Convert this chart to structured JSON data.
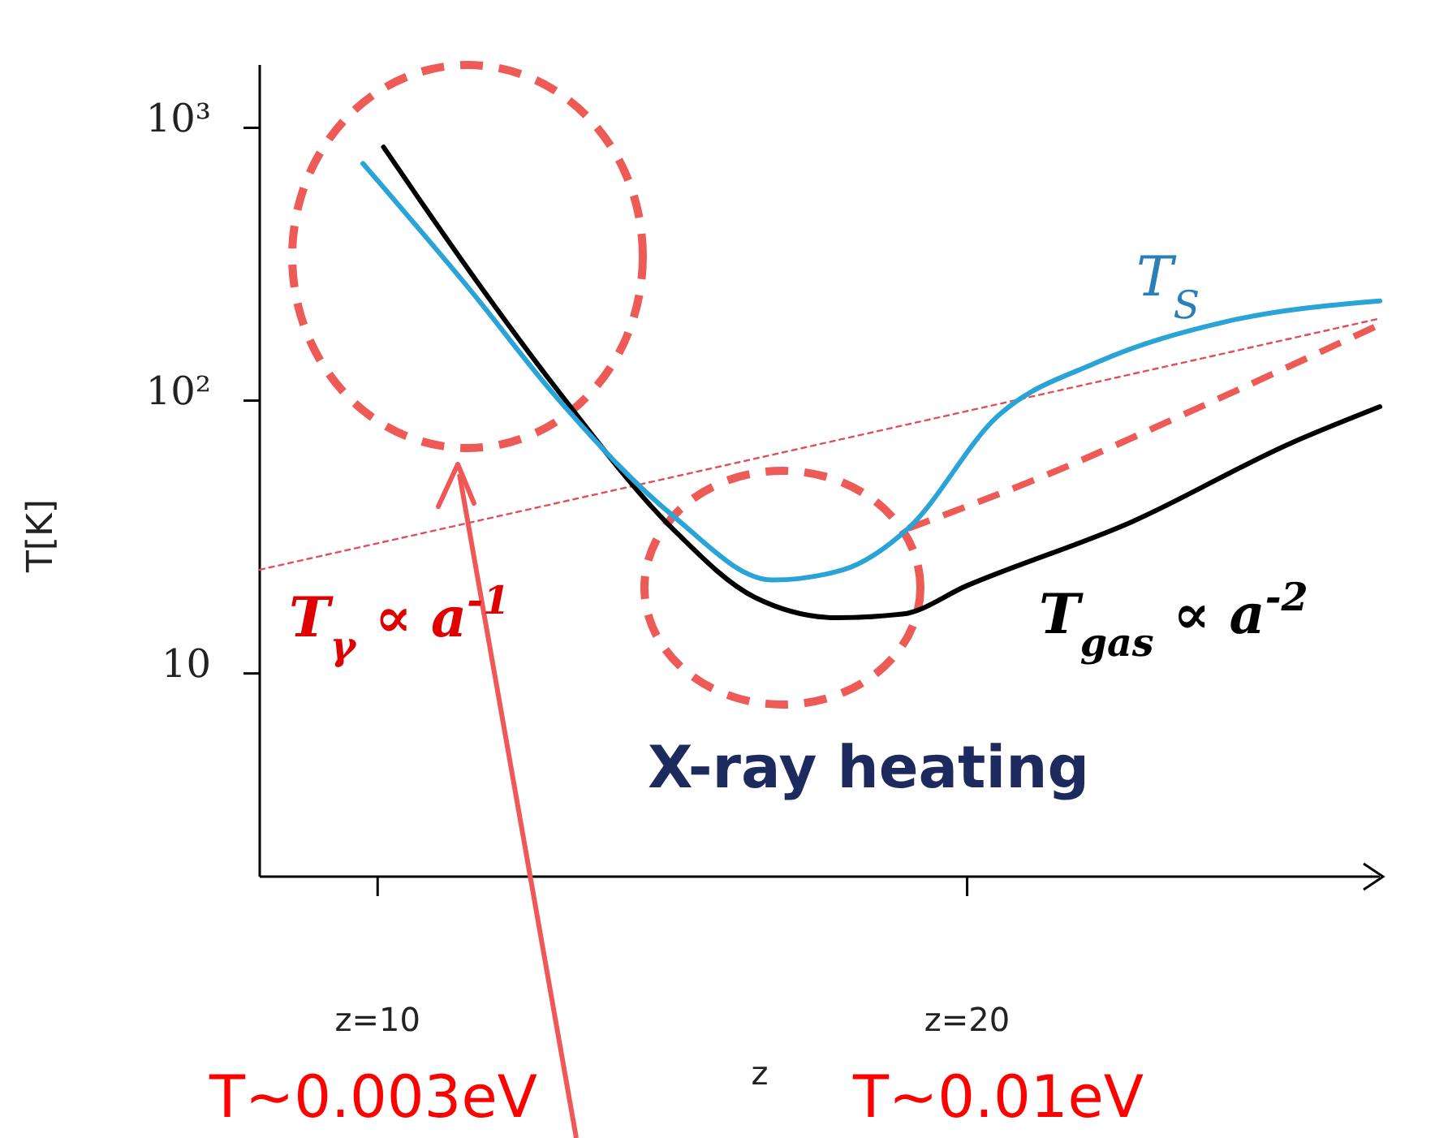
{
  "chart_data": {
    "type": "line",
    "xlabel": "z",
    "ylabel": "T[K]",
    "log": "y",
    "xlim": [
      8,
      27
    ],
    "ylim": [
      1.8,
      1700
    ],
    "xticks": [
      {
        "value": 10,
        "label": "z=10"
      },
      {
        "value": 20,
        "label": "z=20"
      }
    ],
    "yticks": [
      {
        "value": 10,
        "label": "10"
      },
      {
        "value": 100,
        "label": "10²"
      },
      {
        "value": 1000,
        "label": "10³"
      }
    ],
    "grid": false,
    "legend": false,
    "marker": "none",
    "series": [
      {
        "name": "T$_{γ}$ ∝ a$^{-1}$",
        "color": "#e0505a",
        "line_style": "dotted",
        "x": [
          8,
          27
        ],
        "values": [
          24,
          200
        ]
      },
      {
        "name": "T$_{gas}$ ∝ a$^{-2}$",
        "color": "#000000",
        "line_style": "solid",
        "x": [
          10.1,
          11.6,
          13,
          15,
          16.4,
          17.8,
          18.9,
          20,
          22.8,
          25.5,
          27
        ],
        "values": [
          850,
          290,
          113,
          34,
          19,
          16,
          16.5,
          21,
          36,
          70,
          95
        ]
      },
      {
        "color": "#ee5a55",
        "line_style": "dashed",
        "x": [
          19,
          21.4,
          24.1,
          27
        ],
        "values": [
          34,
          54,
          98,
          190
        ]
      },
      {
        "name": "T$_{S}$",
        "color": "#2aa3d6",
        "line_style": "solid",
        "x": [
          9.75,
          11.6,
          13,
          15,
          16.7,
          17.9,
          19,
          20.5,
          22.2,
          24.4,
          27
        ],
        "values": [
          740,
          250,
          105,
          38,
          22,
          24,
          34,
          87,
          138,
          195,
          232
        ]
      }
    ],
    "annotations": [
      "X-ray heating",
      "T~0.003eV",
      "T~0.01eV"
    ]
  }
}
